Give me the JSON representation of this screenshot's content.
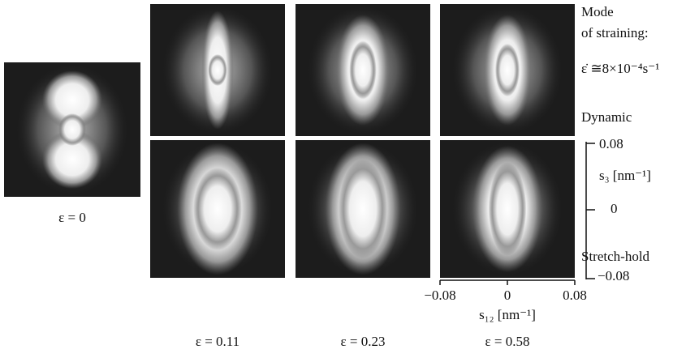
{
  "legend": {
    "mode": "Mode",
    "of_straining": "of straining:",
    "rate": "ε̇ ≅8×10⁻⁴s⁻¹",
    "dynamic": "Dynamic",
    "stretch_hold": "Stretch-hold"
  },
  "strains": [
    "ε = 0",
    "ε = 0.11",
    "ε = 0.23",
    "ε = 0.58"
  ],
  "s3_axis": {
    "label": "s₃ [nm⁻¹]",
    "ticks": [
      "0.08",
      "0",
      "−0.08"
    ]
  },
  "s12_axis": {
    "label": "s₁₂ [nm⁻¹]",
    "ticks": [
      "−0.08",
      "0",
      "0.08"
    ]
  }
}
